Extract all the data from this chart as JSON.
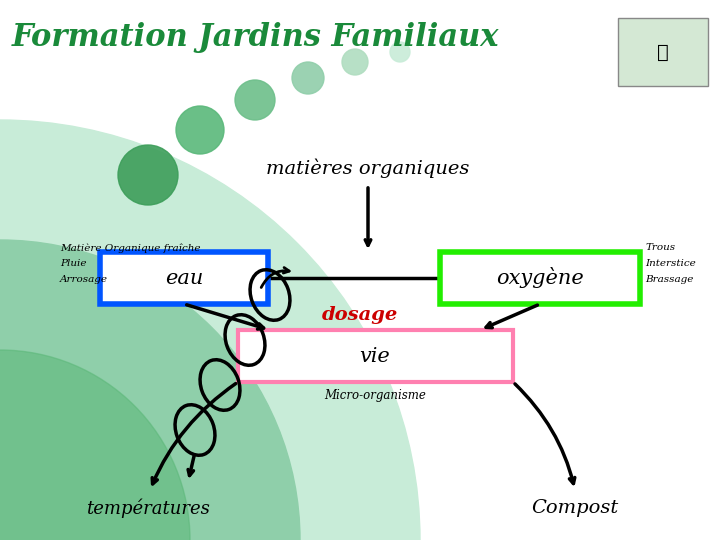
{
  "title": "Formation Jardins Familiaux",
  "title_color": "#1a8a3a",
  "title_fontsize": 22,
  "bg_color": "#ffffff",
  "matieres_text": "matières organiques",
  "eau_text": "eau",
  "oxygene_text": "oxygène",
  "dosage_text": "dosage",
  "vie_text": "vie",
  "temperatures_text": "températures",
  "compost_text": "Compost",
  "micro_text": "Micro-organisme",
  "left_label1": "Matière Organique fraîche",
  "left_label2": "Pluie",
  "left_label3": "Arrosage",
  "right_label1": "Trous",
  "right_label2": "Interstice",
  "right_label3": "Brassage",
  "eau_color": "#0055ff",
  "oxygene_color": "#22ee00",
  "vie_color": "#ff80b0",
  "dosage_color": "#cc0000",
  "dot_color": "#5db87a",
  "dot_light_color": "#a8d8bc"
}
